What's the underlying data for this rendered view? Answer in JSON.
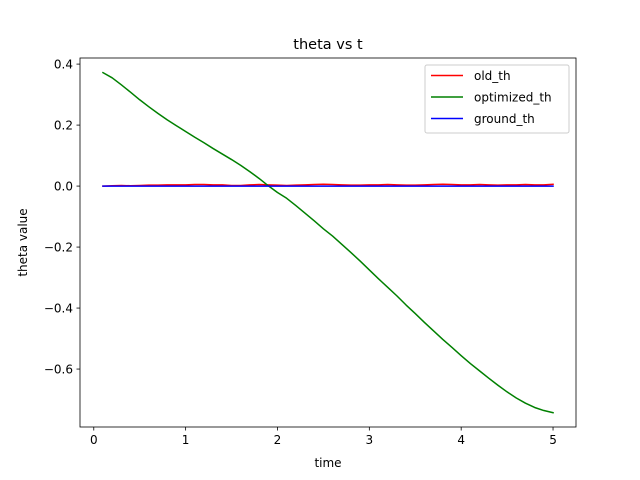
{
  "chart_data": {
    "type": "line",
    "title": "theta vs t",
    "xlabel": "time",
    "ylabel": "theta value",
    "xlim": [
      -0.15,
      5.25
    ],
    "ylim": [
      -0.79,
      0.42
    ],
    "xticks": [
      {
        "value": 0,
        "label": "0"
      },
      {
        "value": 1,
        "label": "1"
      },
      {
        "value": 2,
        "label": "2"
      },
      {
        "value": 3,
        "label": "3"
      },
      {
        "value": 4,
        "label": "4"
      },
      {
        "value": 5,
        "label": "5"
      }
    ],
    "yticks": [
      {
        "value": 0.4,
        "label": "0.4"
      },
      {
        "value": 0.2,
        "label": "0.2"
      },
      {
        "value": 0.0,
        "label": "0.0"
      },
      {
        "value": -0.2,
        "label": "−0.2"
      },
      {
        "value": -0.4,
        "label": "−0.4"
      },
      {
        "value": -0.6,
        "label": "−0.6"
      }
    ],
    "grid": false,
    "legend_position": "top-right",
    "x": [
      0.1,
      0.2,
      0.3,
      0.4,
      0.5,
      0.6,
      0.7,
      0.8,
      0.9,
      1.0,
      1.1,
      1.2,
      1.3,
      1.4,
      1.5,
      1.6,
      1.7,
      1.8,
      1.9,
      2.0,
      2.1,
      2.2,
      2.3,
      2.4,
      2.5,
      2.6,
      2.7,
      2.8,
      2.9,
      3.0,
      3.1,
      3.2,
      3.3,
      3.4,
      3.5,
      3.6,
      3.7,
      3.8,
      3.9,
      4.0,
      4.1,
      4.2,
      4.3,
      4.4,
      4.5,
      4.6,
      4.7,
      4.8,
      4.9,
      5.0
    ],
    "series": [
      {
        "name": "old_th",
        "color": "#ff0000",
        "values": [
          0.0,
          0.001,
          0.002,
          0.001,
          0.002,
          0.003,
          0.003,
          0.004,
          0.004,
          0.004,
          0.005,
          0.005,
          0.004,
          0.004,
          0.002,
          0.002,
          0.004,
          0.005,
          0.004,
          0.003,
          0.002,
          0.003,
          0.004,
          0.005,
          0.006,
          0.005,
          0.004,
          0.003,
          0.003,
          0.004,
          0.004,
          0.005,
          0.004,
          0.003,
          0.003,
          0.004,
          0.005,
          0.006,
          0.005,
          0.004,
          0.004,
          0.005,
          0.004,
          0.003,
          0.004,
          0.004,
          0.005,
          0.004,
          0.004,
          0.006
        ]
      },
      {
        "name": "optimized_th",
        "color": "#008000",
        "values": [
          0.372,
          0.355,
          0.332,
          0.308,
          0.283,
          0.26,
          0.238,
          0.217,
          0.198,
          0.179,
          0.16,
          0.142,
          0.123,
          0.105,
          0.087,
          0.068,
          0.047,
          0.025,
          0.001,
          -0.021,
          -0.04,
          -0.064,
          -0.089,
          -0.114,
          -0.14,
          -0.164,
          -0.191,
          -0.218,
          -0.246,
          -0.275,
          -0.304,
          -0.332,
          -0.36,
          -0.39,
          -0.418,
          -0.447,
          -0.475,
          -0.503,
          -0.529,
          -0.556,
          -0.582,
          -0.606,
          -0.63,
          -0.653,
          -0.675,
          -0.695,
          -0.712,
          -0.726,
          -0.736,
          -0.743
        ]
      },
      {
        "name": "ground_th",
        "color": "#0000ff",
        "values": [
          0.0,
          0.0,
          0.0,
          0.0,
          0.0,
          0.0,
          0.0,
          0.0,
          0.0,
          0.0,
          0.0,
          0.0,
          0.0,
          0.0,
          0.0,
          0.0,
          0.0,
          0.0,
          0.0,
          0.0,
          0.0,
          0.0,
          0.0,
          0.0,
          0.0,
          0.0,
          0.0,
          0.0,
          0.0,
          0.0,
          0.0,
          0.0,
          0.0,
          0.0,
          0.0,
          0.0,
          0.0,
          0.0,
          0.0,
          0.0,
          0.0,
          0.0,
          0.0,
          0.0,
          0.0,
          0.0,
          0.0,
          0.0,
          0.0,
          0.0
        ]
      }
    ]
  }
}
